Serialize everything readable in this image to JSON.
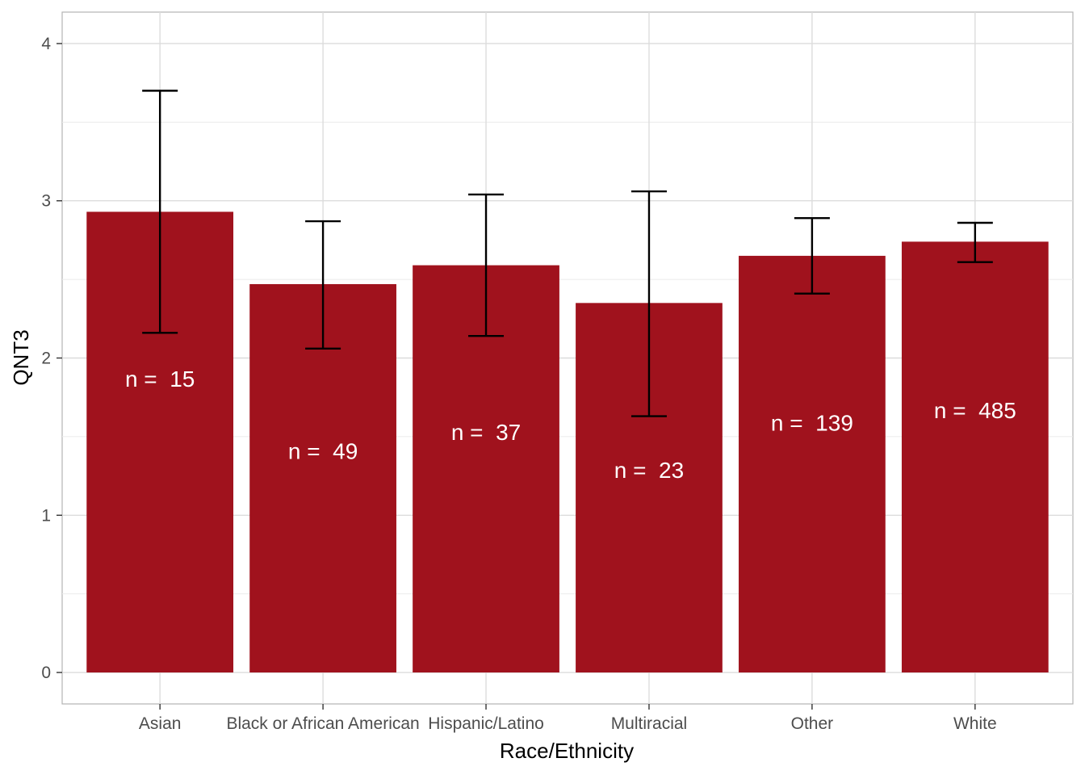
{
  "chart_data": {
    "type": "bar",
    "title": "",
    "xlabel": "Race/Ethnicity",
    "ylabel": "QNT3",
    "ylim": [
      -0.2,
      4.2
    ],
    "yticks": [
      0,
      1,
      2,
      3,
      4
    ],
    "grid": true,
    "legend": "none",
    "bar_color": "#A0121D",
    "categories": [
      "Asian",
      "Black or African American",
      "Hispanic/Latino",
      "Multiracial",
      "Other",
      "White"
    ],
    "values": [
      2.93,
      2.47,
      2.59,
      2.35,
      2.65,
      2.74
    ],
    "error_low": [
      2.16,
      2.06,
      2.14,
      1.63,
      2.41,
      2.61
    ],
    "error_high": [
      3.7,
      2.87,
      3.04,
      3.06,
      2.89,
      2.86
    ],
    "labels": [
      "n =  15",
      "n =  49",
      "n =  37",
      "n =  23",
      "n =  139",
      "n =  485"
    ],
    "label_y": [
      1.87,
      1.41,
      1.53,
      1.29,
      1.59,
      1.67
    ]
  }
}
